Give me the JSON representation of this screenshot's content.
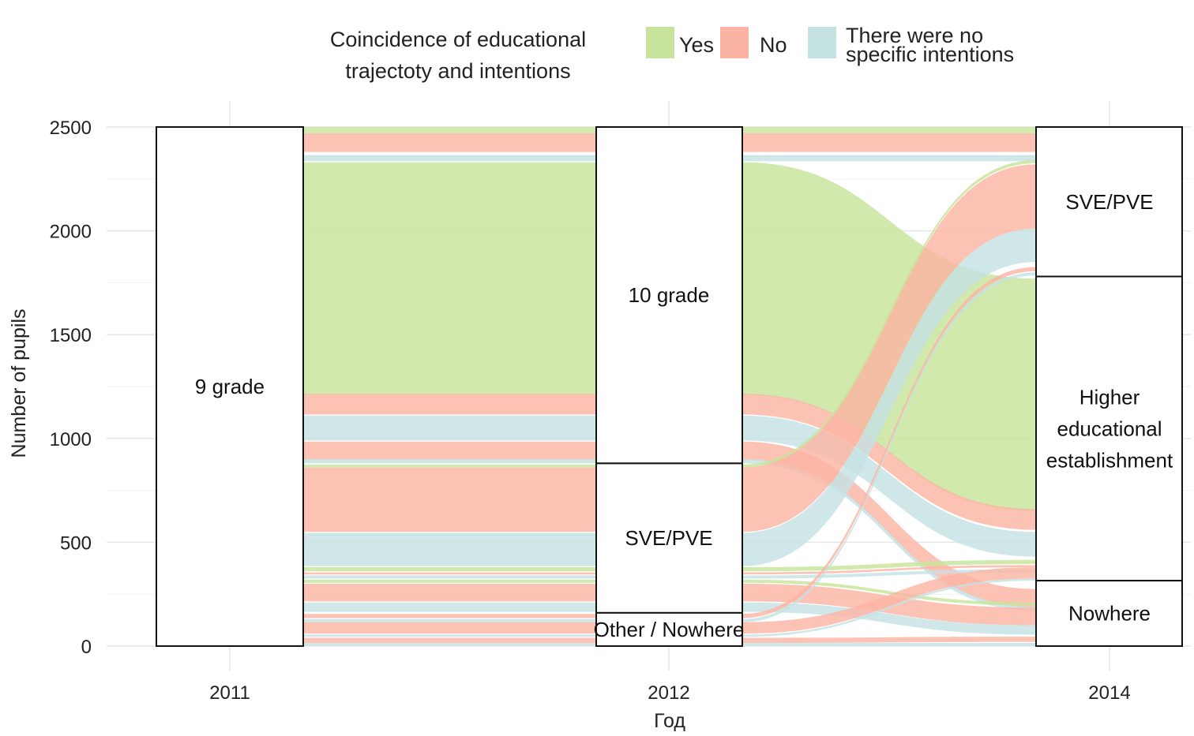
{
  "chart_data": {
    "type": "alluvial",
    "xlabel": "Год",
    "ylabel": "Number of pupils",
    "ylim": [
      0,
      2500
    ],
    "y_ticks": [
      0,
      500,
      1000,
      1500,
      2000,
      2500
    ],
    "axes": [
      "2011",
      "2012",
      "2014"
    ],
    "grid": true,
    "legend": {
      "position": "top",
      "title": [
        "Coincidence of educational",
        "trajectoty and intentions"
      ],
      "entries": [
        {
          "key": "yes",
          "label_lines": [
            "Yes"
          ],
          "color": "#c7e49a"
        },
        {
          "key": "no",
          "label_lines": [
            "No"
          ],
          "color": "#fbb4a3"
        },
        {
          "key": "none",
          "label_lines": [
            "There were no",
            "specific intentions"
          ],
          "color": "#c5e2e3"
        }
      ]
    },
    "strata": [
      {
        "axis": 0,
        "label_lines": [
          "9 grade"
        ],
        "from": 0,
        "to": 2500
      },
      {
        "axis": 1,
        "label_lines": [
          "10 grade"
        ],
        "from": 880,
        "to": 2500
      },
      {
        "axis": 1,
        "label_lines": [
          "SVE/PVE"
        ],
        "from": 160,
        "to": 880
      },
      {
        "axis": 1,
        "label_lines": [
          "Other / Nowhere"
        ],
        "from": 0,
        "to": 160
      },
      {
        "axis": 2,
        "label_lines": [
          "SVE/PVE"
        ],
        "from": 1780,
        "to": 2500
      },
      {
        "axis": 2,
        "label_lines": [
          "Higher",
          "educational",
          "establishment"
        ],
        "from": 315,
        "to": 1780
      },
      {
        "axis": 2,
        "label_lines": [
          "Nowhere"
        ],
        "from": 0,
        "to": 315
      }
    ],
    "flows": [
      {
        "group": "yes",
        "value": 30,
        "y0": 2470,
        "y1": 2470,
        "y2": 2470
      },
      {
        "group": "no",
        "value": 90,
        "y0": 2380,
        "y1": 2380,
        "y2": 2380
      },
      {
        "group": "none",
        "value": 30,
        "y0": 2335,
        "y1": 2335,
        "y2": 2335
      },
      {
        "group": "yes",
        "value": 1120,
        "y0": 1210,
        "y1": 1210,
        "y2": 650
      },
      {
        "group": "no",
        "value": 100,
        "y0": 1115,
        "y1": 1115,
        "y2": 560
      },
      {
        "group": "none",
        "value": 120,
        "y0": 990,
        "y1": 990,
        "y2": 430
      },
      {
        "group": "no",
        "value": 90,
        "y0": 895,
        "y1": 895,
        "y2": 185
      },
      {
        "group": "none",
        "value": 20,
        "y0": 880,
        "y1": 880,
        "y2": 170
      },
      {
        "group": "yes",
        "value": 15,
        "y0": 860,
        "y1": 860,
        "y2": 2325
      },
      {
        "group": "no",
        "value": 310,
        "y0": 550,
        "y1": 550,
        "y2": 2010
      },
      {
        "group": "none",
        "value": 160,
        "y0": 385,
        "y1": 385,
        "y2": 1850
      },
      {
        "group": "yes",
        "value": 20,
        "y0": 360,
        "y1": 360,
        "y2": 395
      },
      {
        "group": "no",
        "value": 10,
        "y0": 345,
        "y1": 345,
        "y2": 380
      },
      {
        "group": "none",
        "value": 15,
        "y0": 325,
        "y1": 325,
        "y2": 355
      },
      {
        "group": "yes",
        "value": 15,
        "y0": 305,
        "y1": 305,
        "y2": 195
      },
      {
        "group": "no",
        "value": 85,
        "y0": 215,
        "y1": 215,
        "y2": 100
      },
      {
        "group": "none",
        "value": 45,
        "y0": 165,
        "y1": 165,
        "y2": 55
      },
      {
        "group": "no",
        "value": 20,
        "y0": 135,
        "y1": 135,
        "y2": 1805
      },
      {
        "group": "none",
        "value": 15,
        "y0": 115,
        "y1": 115,
        "y2": 1785
      },
      {
        "group": "no",
        "value": 55,
        "y0": 60,
        "y1": 60,
        "y2": 325
      },
      {
        "group": "none",
        "value": 10,
        "y0": 45,
        "y1": 45,
        "y2": 315
      },
      {
        "group": "no",
        "value": 25,
        "y0": 15,
        "y1": 15,
        "y2": 20
      },
      {
        "group": "none",
        "value": 15,
        "y0": 0,
        "y1": 0,
        "y2": 0
      }
    ]
  }
}
